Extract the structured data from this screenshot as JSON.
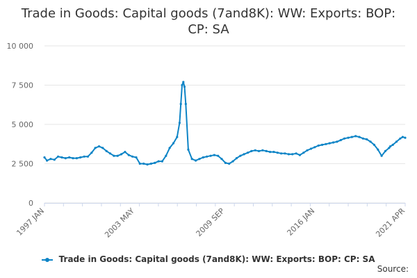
{
  "colors": {
    "series": "#0d84c6",
    "grid": "#e6e6e6",
    "axis": "#ccd6eb"
  },
  "source_label": "Source:",
  "chart_data": {
    "type": "line",
    "title": "Trade in Goods: Capital goods (7and8K): WW: Exports: BOP: CP: SA",
    "xlabel": "",
    "ylabel": "",
    "ylim": [
      0,
      10000
    ],
    "y_ticks": [
      "0",
      "2 500",
      "5 000",
      "7 500",
      "10 000"
    ],
    "x_ticks": [
      "1997 JAN",
      "2003 MAY",
      "2009 SEP",
      "2016 JAN",
      "2021 APR"
    ],
    "x_range": [
      "1997-01",
      "2021-04"
    ],
    "grid": "horizontal",
    "legend_position": "bottom",
    "series": [
      {
        "name": "Trade in Goods: Capital goods (7and8K): WW: Exports: BOP: CP: SA",
        "x": [
          "1997-01",
          "1997-03",
          "1997-06",
          "1997-09",
          "1997-12",
          "1998-03",
          "1998-06",
          "1998-09",
          "1998-12",
          "1999-03",
          "1999-06",
          "1999-09",
          "1999-12",
          "2000-03",
          "2000-06",
          "2000-09",
          "2000-12",
          "2001-03",
          "2001-06",
          "2001-09",
          "2001-12",
          "2002-03",
          "2002-06",
          "2002-09",
          "2002-12",
          "2003-03",
          "2003-06",
          "2003-09",
          "2003-12",
          "2004-03",
          "2004-06",
          "2004-09",
          "2004-12",
          "2005-03",
          "2005-06",
          "2005-09",
          "2005-12",
          "2006-02",
          "2006-03",
          "2006-04",
          "2006-05",
          "2006-06",
          "2006-07",
          "2006-09",
          "2006-12",
          "2007-03",
          "2007-06",
          "2007-09",
          "2007-12",
          "2008-03",
          "2008-06",
          "2008-09",
          "2008-12",
          "2009-03",
          "2009-06",
          "2009-09",
          "2009-12",
          "2010-03",
          "2010-06",
          "2010-09",
          "2010-12",
          "2011-03",
          "2011-06",
          "2011-09",
          "2011-12",
          "2012-03",
          "2012-06",
          "2012-09",
          "2012-12",
          "2013-03",
          "2013-06",
          "2013-09",
          "2013-12",
          "2014-03",
          "2014-06",
          "2014-09",
          "2014-12",
          "2015-03",
          "2015-06",
          "2015-09",
          "2015-12",
          "2016-03",
          "2016-06",
          "2016-09",
          "2016-12",
          "2017-03",
          "2017-06",
          "2017-09",
          "2017-12",
          "2018-03",
          "2018-06",
          "2018-09",
          "2018-12",
          "2019-03",
          "2019-06",
          "2019-09",
          "2019-12",
          "2020-03",
          "2020-04",
          "2020-06",
          "2020-09",
          "2020-12",
          "2021-02",
          "2021-04"
        ],
        "values": [
          2900,
          2700,
          2800,
          2750,
          2950,
          2900,
          2850,
          2900,
          2850,
          2850,
          2900,
          2950,
          2950,
          3200,
          3500,
          3600,
          3500,
          3300,
          3150,
          3000,
          3000,
          3100,
          3250,
          3050,
          2950,
          2900,
          2500,
          2500,
          2450,
          2500,
          2550,
          2650,
          2650,
          3000,
          3500,
          3800,
          4200,
          5100,
          6300,
          7500,
          7700,
          7400,
          6300,
          3400,
          2800,
          2700,
          2800,
          2900,
          2950,
          3000,
          3050,
          3000,
          2800,
          2550,
          2500,
          2650,
          2850,
          3000,
          3100,
          3200,
          3300,
          3350,
          3300,
          3350,
          3300,
          3250,
          3250,
          3200,
          3150,
          3150,
          3100,
          3100,
          3150,
          3050,
          3200,
          3350,
          3450,
          3550,
          3650,
          3700,
          3750,
          3800,
          3850,
          3900,
          4000,
          4100,
          4150,
          4200,
          4250,
          4200,
          4100,
          4050,
          3900,
          3700,
          3400,
          3000,
          3300,
          3500,
          3600,
          3700,
          3900,
          4100,
          4200,
          4150
        ]
      }
    ]
  }
}
